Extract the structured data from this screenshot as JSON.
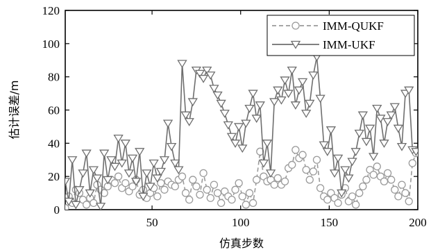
{
  "chart_data": {
    "type": "line",
    "xlabel": "仿真步数",
    "ylabel": "估计误差/m",
    "xlim": [
      1,
      200
    ],
    "ylim": [
      0,
      120
    ],
    "xticks": [
      50,
      100,
      150,
      200
    ],
    "yticks": [
      0,
      20,
      40,
      60,
      80,
      100,
      120
    ],
    "grid": false,
    "legend_position": "top-right",
    "series": [
      {
        "name": "IMM-QUKF",
        "style": "dashed",
        "marker": "circle",
        "color": "#9a9a9a",
        "x": [
          1,
          3,
          5,
          7,
          9,
          11,
          13,
          15,
          17,
          19,
          21,
          23,
          25,
          27,
          29,
          31,
          33,
          35,
          37,
          39,
          41,
          43,
          45,
          47,
          49,
          51,
          53,
          55,
          57,
          59,
          61,
          63,
          65,
          67,
          69,
          71,
          73,
          75,
          77,
          79,
          81,
          83,
          85,
          87,
          89,
          91,
          93,
          95,
          97,
          99,
          101,
          103,
          105,
          107,
          109,
          111,
          113,
          115,
          117,
          119,
          121,
          123,
          125,
          127,
          129,
          131,
          133,
          135,
          137,
          139,
          141,
          143,
          145,
          147,
          149,
          151,
          153,
          155,
          157,
          159,
          161,
          163,
          165,
          167,
          169,
          171,
          173,
          175,
          177,
          179,
          181,
          183,
          185,
          187,
          189,
          191,
          193,
          195,
          197,
          199
        ],
        "values": [
          1,
          8,
          4,
          12,
          10,
          6,
          3,
          7,
          4,
          15,
          12,
          10,
          14,
          18,
          16,
          20,
          13,
          16,
          11,
          14,
          18,
          9,
          12,
          7,
          10,
          13,
          8,
          16,
          12,
          17,
          15,
          14,
          18,
          20,
          10,
          6,
          18,
          14,
          9,
          22,
          12,
          7,
          15,
          10,
          4,
          11,
          8,
          6,
          12,
          16,
          8,
          3,
          10,
          4,
          18,
          35,
          20,
          17,
          18,
          15,
          19,
          15,
          17,
          25,
          27,
          36,
          31,
          33,
          24,
          18,
          23,
          30,
          13,
          8,
          6,
          10,
          7,
          4,
          9,
          13,
          5,
          8,
          3,
          10,
          14,
          18,
          24,
          21,
          26,
          20,
          17,
          22,
          18,
          12,
          8,
          15,
          10,
          5,
          28,
          34
        ]
      },
      {
        "name": "IMM-UKF",
        "style": "solid",
        "marker": "triangle-down",
        "color": "#6e6e6e",
        "x": [
          1,
          3,
          5,
          7,
          9,
          11,
          13,
          15,
          17,
          19,
          21,
          23,
          25,
          27,
          29,
          31,
          33,
          35,
          37,
          39,
          41,
          43,
          45,
          47,
          49,
          51,
          53,
          55,
          57,
          59,
          61,
          63,
          65,
          67,
          69,
          71,
          73,
          75,
          77,
          79,
          81,
          83,
          85,
          87,
          89,
          91,
          93,
          95,
          97,
          99,
          101,
          103,
          105,
          107,
          109,
          111,
          113,
          115,
          117,
          119,
          121,
          123,
          125,
          127,
          129,
          131,
          133,
          135,
          137,
          139,
          141,
          143,
          145,
          147,
          149,
          151,
          153,
          155,
          157,
          159,
          161,
          163,
          165,
          167,
          169,
          171,
          173,
          175,
          177,
          179,
          181,
          183,
          185,
          187,
          189,
          191,
          193,
          195,
          197,
          199
        ],
        "values": [
          17,
          5,
          30,
          3,
          12,
          22,
          34,
          10,
          24,
          19,
          2,
          34,
          18,
          30,
          26,
          43,
          28,
          40,
          22,
          31,
          17,
          35,
          8,
          22,
          14,
          28,
          19,
          23,
          30,
          52,
          38,
          28,
          24,
          88,
          57,
          53,
          65,
          84,
          82,
          79,
          84,
          81,
          73,
          69,
          64,
          58,
          51,
          44,
          40,
          50,
          37,
          52,
          61,
          70,
          55,
          63,
          28,
          40,
          22,
          65,
          72,
          66,
          78,
          70,
          84,
          63,
          72,
          77,
          58,
          64,
          81,
          92,
          67,
          39,
          35,
          48,
          22,
          31,
          10,
          24,
          19,
          29,
          35,
          46,
          57,
          41,
          49,
          32,
          61,
          55,
          40,
          53,
          57,
          62,
          49,
          38,
          70,
          72,
          36,
          35
        ]
      }
    ]
  }
}
